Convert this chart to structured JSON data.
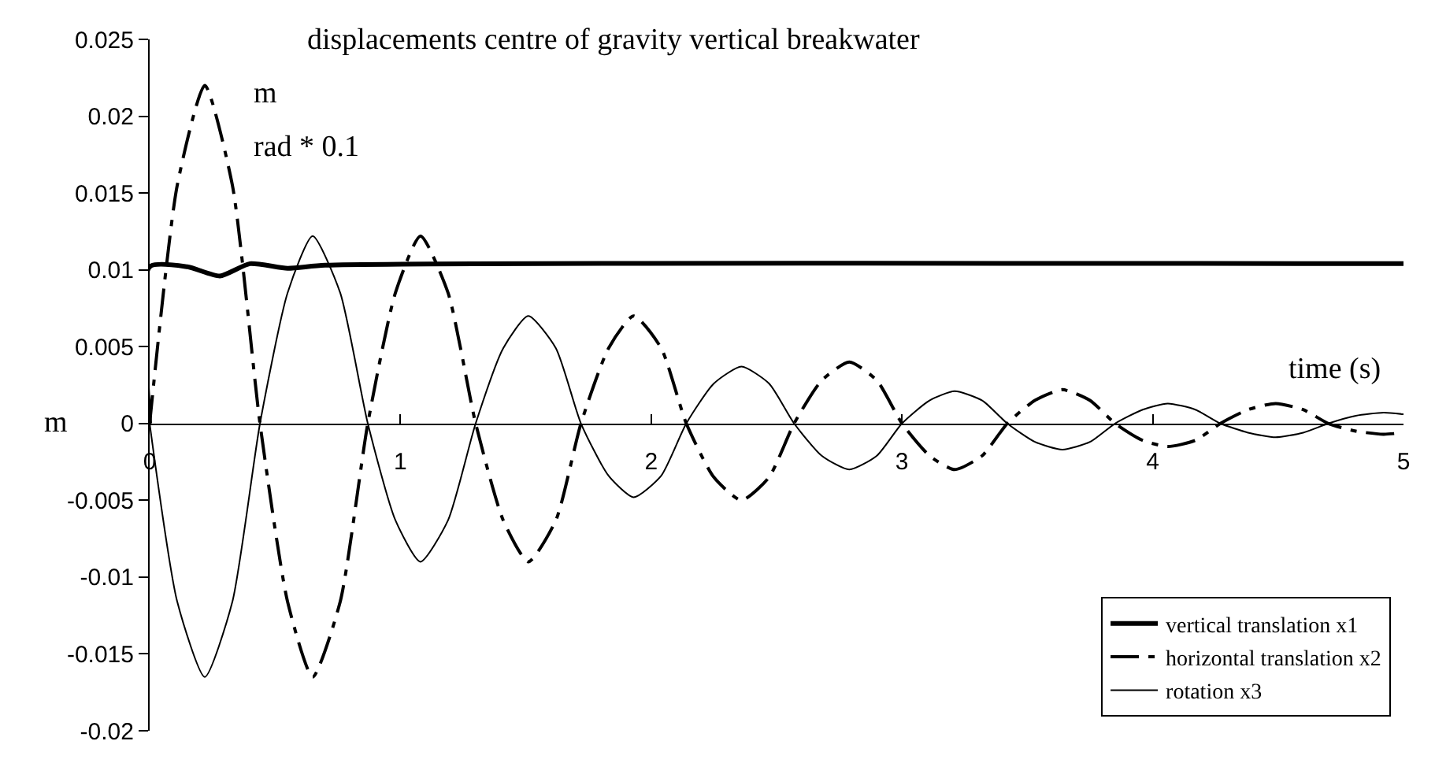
{
  "chart_data": {
    "type": "line",
    "title": "displacements centre of gravity vertical breakwater",
    "xlabel": "time (s)",
    "ylabel": "m",
    "annotations": [
      "m",
      "rad * 0.1"
    ],
    "xlim": [
      0,
      5
    ],
    "xticks": [
      0,
      1,
      2,
      3,
      4,
      5
    ],
    "ylim": [
      -0.02,
      0.025
    ],
    "yticks": [
      -0.02,
      -0.015,
      -0.01,
      -0.005,
      0,
      0.005,
      0.01,
      0.015,
      0.02,
      0.025
    ],
    "legend": "bottom right",
    "marker": "none",
    "x": [
      0,
      0.11,
      0.22,
      0.33,
      0.44,
      0.55,
      0.65,
      0.76,
      0.87,
      0.98,
      1.08,
      1.19,
      1.3,
      1.41,
      1.51,
      1.62,
      1.72,
      1.83,
      1.93,
      2.04,
      2.14,
      2.25,
      2.36,
      2.47,
      2.57,
      2.68,
      2.79,
      2.9,
      3.0,
      3.11,
      3.21,
      3.32,
      3.42,
      3.53,
      3.64,
      3.75,
      3.85,
      3.96,
      4.06,
      4.17,
      4.27,
      4.38,
      4.49,
      4.6,
      4.7,
      4.81,
      4.92,
      5.0
    ],
    "series": [
      {
        "name": "vertical translation x1",
        "color": "#000000",
        "line_style": "solid",
        "x": [
          0,
          0,
          0.15,
          0.28,
          0.4,
          0.55,
          0.7,
          5
        ],
        "values": [
          0,
          0.0102,
          0.0102,
          0.0096,
          0.0104,
          0.0101,
          0.0103,
          0.0104
        ]
      },
      {
        "name": "horizontal translation x2",
        "color": "#000000",
        "line_style": "dashed",
        "values": [
          0,
          0.0155,
          0.022,
          0.0155,
          0,
          -0.0116,
          -0.0165,
          -0.0116,
          0,
          0.0085,
          0.0122,
          0.0085,
          0,
          -0.0063,
          -0.009,
          -0.0063,
          0,
          0.0049,
          0.007,
          0.0049,
          0,
          -0.0035,
          -0.005,
          -0.0035,
          0,
          0.0028,
          0.004,
          0.0028,
          0,
          -0.0021,
          -0.003,
          -0.0021,
          0,
          0.0015,
          0.0022,
          0.0015,
          0,
          -0.0011,
          -0.0015,
          -0.0011,
          0,
          0.0009,
          0.0013,
          0.0009,
          0,
          -0.0005,
          -0.0007,
          -0.0006
        ]
      },
      {
        "name": "rotation x3",
        "color": "#000000",
        "line_style": "solid",
        "values": [
          0,
          -0.0116,
          -0.0165,
          -0.0116,
          0,
          0.0085,
          0.0122,
          0.0085,
          0,
          -0.0063,
          -0.009,
          -0.0063,
          0,
          0.0049,
          0.007,
          0.0049,
          0,
          -0.0034,
          -0.0048,
          -0.0034,
          0,
          0.0026,
          0.0037,
          0.0026,
          0,
          -0.0021,
          -0.003,
          -0.0021,
          0,
          0.0015,
          0.0021,
          0.0015,
          0,
          -0.0012,
          -0.0017,
          -0.0012,
          0,
          0.0009,
          0.0013,
          0.0009,
          0,
          -0.0006,
          -0.0009,
          -0.0006,
          0,
          0.0005,
          0.0007,
          0.0006
        ]
      }
    ]
  }
}
